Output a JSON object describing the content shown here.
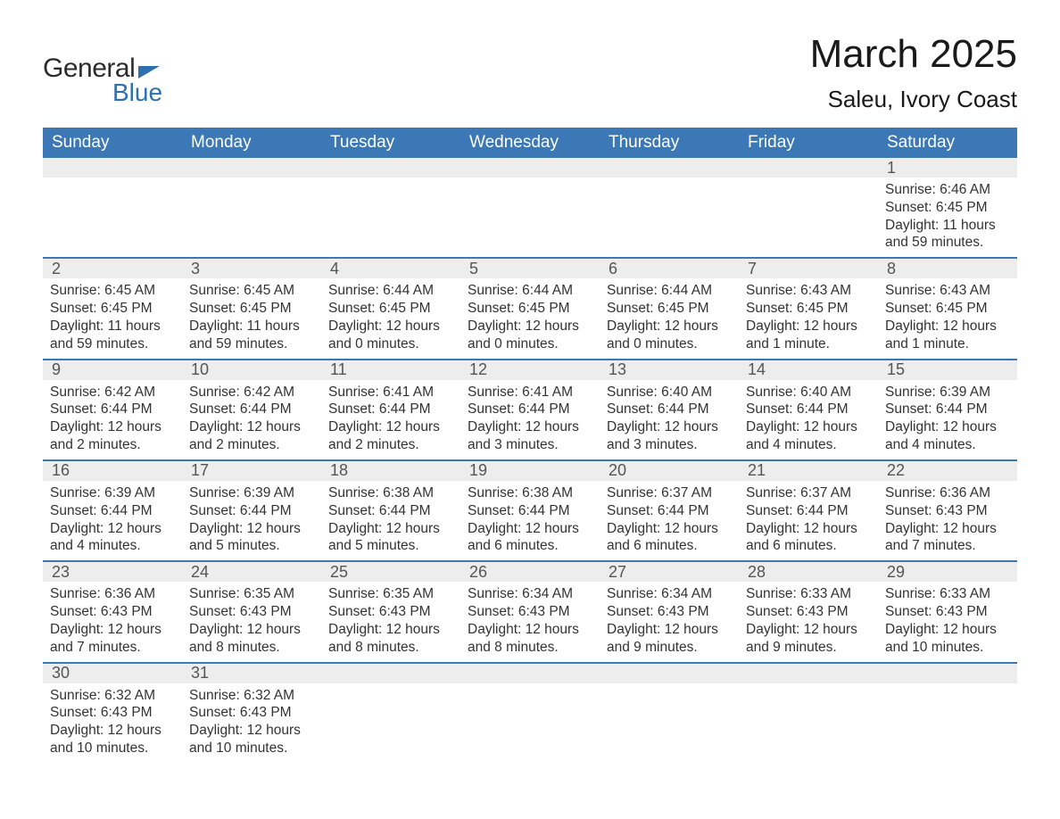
{
  "logo": {
    "text_general": "General",
    "text_blue": "Blue",
    "brand_color": "#2f6fae",
    "text_color": "#2c2c2c"
  },
  "title": "March 2025",
  "location": "Saleu, Ivory Coast",
  "colors": {
    "header_bg": "#3b78b5",
    "header_text": "#ffffff",
    "daynum_bg": "#ededed",
    "daynum_text": "#555555",
    "week_border": "#3b78b5",
    "body_text": "#333333",
    "page_bg": "#ffffff"
  },
  "typography": {
    "title_fontsize": 44,
    "location_fontsize": 26,
    "weekday_fontsize": 19,
    "daynum_fontsize": 18,
    "data_fontsize": 15.5
  },
  "weekdays": [
    "Sunday",
    "Monday",
    "Tuesday",
    "Wednesday",
    "Thursday",
    "Friday",
    "Saturday"
  ],
  "weeks": [
    [
      null,
      null,
      null,
      null,
      null,
      null,
      {
        "n": "1",
        "sr": "6:46 AM",
        "ss": "6:45 PM",
        "dl": "11 hours and 59 minutes."
      }
    ],
    [
      {
        "n": "2",
        "sr": "6:45 AM",
        "ss": "6:45 PM",
        "dl": "11 hours and 59 minutes."
      },
      {
        "n": "3",
        "sr": "6:45 AM",
        "ss": "6:45 PM",
        "dl": "11 hours and 59 minutes."
      },
      {
        "n": "4",
        "sr": "6:44 AM",
        "ss": "6:45 PM",
        "dl": "12 hours and 0 minutes."
      },
      {
        "n": "5",
        "sr": "6:44 AM",
        "ss": "6:45 PM",
        "dl": "12 hours and 0 minutes."
      },
      {
        "n": "6",
        "sr": "6:44 AM",
        "ss": "6:45 PM",
        "dl": "12 hours and 0 minutes."
      },
      {
        "n": "7",
        "sr": "6:43 AM",
        "ss": "6:45 PM",
        "dl": "12 hours and 1 minute."
      },
      {
        "n": "8",
        "sr": "6:43 AM",
        "ss": "6:45 PM",
        "dl": "12 hours and 1 minute."
      }
    ],
    [
      {
        "n": "9",
        "sr": "6:42 AM",
        "ss": "6:44 PM",
        "dl": "12 hours and 2 minutes."
      },
      {
        "n": "10",
        "sr": "6:42 AM",
        "ss": "6:44 PM",
        "dl": "12 hours and 2 minutes."
      },
      {
        "n": "11",
        "sr": "6:41 AM",
        "ss": "6:44 PM",
        "dl": "12 hours and 2 minutes."
      },
      {
        "n": "12",
        "sr": "6:41 AM",
        "ss": "6:44 PM",
        "dl": "12 hours and 3 minutes."
      },
      {
        "n": "13",
        "sr": "6:40 AM",
        "ss": "6:44 PM",
        "dl": "12 hours and 3 minutes."
      },
      {
        "n": "14",
        "sr": "6:40 AM",
        "ss": "6:44 PM",
        "dl": "12 hours and 4 minutes."
      },
      {
        "n": "15",
        "sr": "6:39 AM",
        "ss": "6:44 PM",
        "dl": "12 hours and 4 minutes."
      }
    ],
    [
      {
        "n": "16",
        "sr": "6:39 AM",
        "ss": "6:44 PM",
        "dl": "12 hours and 4 minutes."
      },
      {
        "n": "17",
        "sr": "6:39 AM",
        "ss": "6:44 PM",
        "dl": "12 hours and 5 minutes."
      },
      {
        "n": "18",
        "sr": "6:38 AM",
        "ss": "6:44 PM",
        "dl": "12 hours and 5 minutes."
      },
      {
        "n": "19",
        "sr": "6:38 AM",
        "ss": "6:44 PM",
        "dl": "12 hours and 6 minutes."
      },
      {
        "n": "20",
        "sr": "6:37 AM",
        "ss": "6:44 PM",
        "dl": "12 hours and 6 minutes."
      },
      {
        "n": "21",
        "sr": "6:37 AM",
        "ss": "6:44 PM",
        "dl": "12 hours and 6 minutes."
      },
      {
        "n": "22",
        "sr": "6:36 AM",
        "ss": "6:43 PM",
        "dl": "12 hours and 7 minutes."
      }
    ],
    [
      {
        "n": "23",
        "sr": "6:36 AM",
        "ss": "6:43 PM",
        "dl": "12 hours and 7 minutes."
      },
      {
        "n": "24",
        "sr": "6:35 AM",
        "ss": "6:43 PM",
        "dl": "12 hours and 8 minutes."
      },
      {
        "n": "25",
        "sr": "6:35 AM",
        "ss": "6:43 PM",
        "dl": "12 hours and 8 minutes."
      },
      {
        "n": "26",
        "sr": "6:34 AM",
        "ss": "6:43 PM",
        "dl": "12 hours and 8 minutes."
      },
      {
        "n": "27",
        "sr": "6:34 AM",
        "ss": "6:43 PM",
        "dl": "12 hours and 9 minutes."
      },
      {
        "n": "28",
        "sr": "6:33 AM",
        "ss": "6:43 PM",
        "dl": "12 hours and 9 minutes."
      },
      {
        "n": "29",
        "sr": "6:33 AM",
        "ss": "6:43 PM",
        "dl": "12 hours and 10 minutes."
      }
    ],
    [
      {
        "n": "30",
        "sr": "6:32 AM",
        "ss": "6:43 PM",
        "dl": "12 hours and 10 minutes."
      },
      {
        "n": "31",
        "sr": "6:32 AM",
        "ss": "6:43 PM",
        "dl": "12 hours and 10 minutes."
      },
      null,
      null,
      null,
      null,
      null
    ]
  ],
  "labels": {
    "sunrise": "Sunrise:",
    "sunset": "Sunset:",
    "daylight": "Daylight:"
  }
}
